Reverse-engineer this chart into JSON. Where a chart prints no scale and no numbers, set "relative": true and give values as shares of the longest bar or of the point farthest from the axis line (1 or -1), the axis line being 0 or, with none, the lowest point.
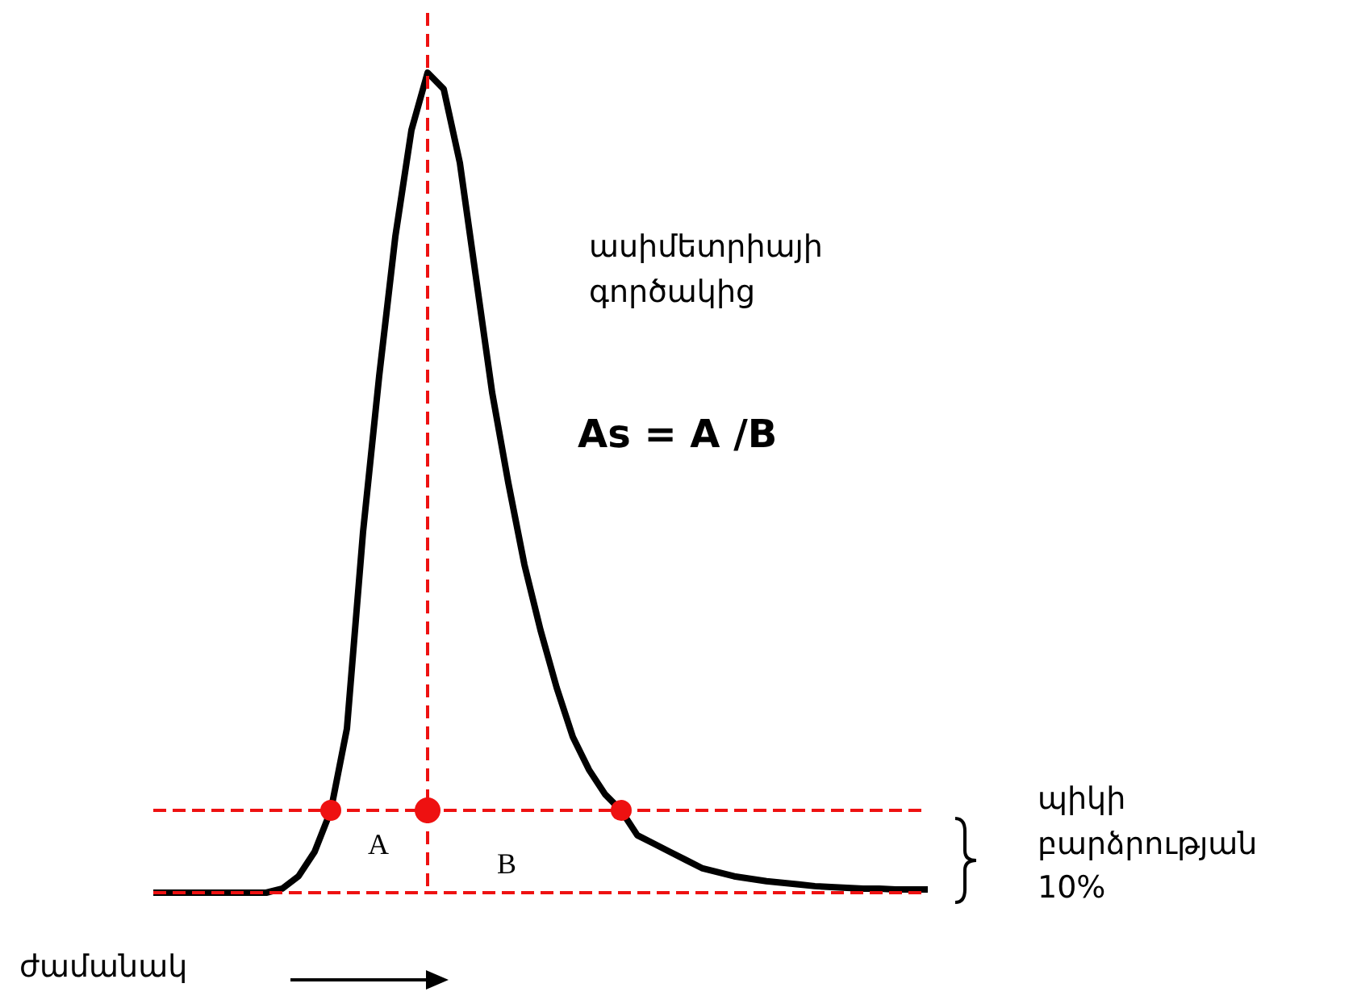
{
  "chart_data": {
    "type": "line",
    "relative": true,
    "xlabel": "ժամանակ",
    "categories": [
      null,
      null,
      null,
      null,
      null,
      null,
      null,
      null,
      null,
      null,
      null,
      null,
      null,
      null,
      null,
      null,
      null,
      null,
      null,
      null,
      null,
      null,
      null,
      null,
      null,
      null,
      null,
      null,
      null,
      null,
      null,
      null,
      null,
      null,
      null,
      null,
      null,
      null,
      null,
      null,
      null,
      null,
      null,
      null,
      null,
      null,
      null,
      null,
      null
    ],
    "series": [
      {
        "color": "#000000",
        "values": [
          0,
          0,
          0,
          0,
          0,
          0,
          0,
          0,
          0.005,
          0.02,
          0.05,
          0.1,
          0.2,
          0.44,
          0.63,
          0.8,
          0.93,
          1,
          0.98,
          0.89,
          0.75,
          0.61,
          0.5,
          0.4,
          0.32,
          0.25,
          0.19,
          0.15,
          0.12,
          0.1,
          0.07,
          0.06,
          0.05,
          0.04,
          0.03,
          0.025,
          0.02,
          0.017,
          0.014,
          0.012,
          0.01,
          0.008,
          0.007,
          0.006,
          0.005,
          0.005,
          0.004,
          0.004,
          0.004
        ]
      }
    ],
    "ref_lines": [
      {
        "axis": "y",
        "value": 0.1,
        "color": "#ee1111",
        "line_style": "dashed"
      },
      {
        "axis": "y",
        "value": 0,
        "color": "#ee1111",
        "line_style": "dashed"
      }
    ],
    "annotations": [
      "ասիմետրիայի\nգործակից",
      "As = A /B",
      "A",
      "B",
      "պիկի\nբարձրության\n10%"
    ],
    "marker": "none",
    "grid": false
  }
}
